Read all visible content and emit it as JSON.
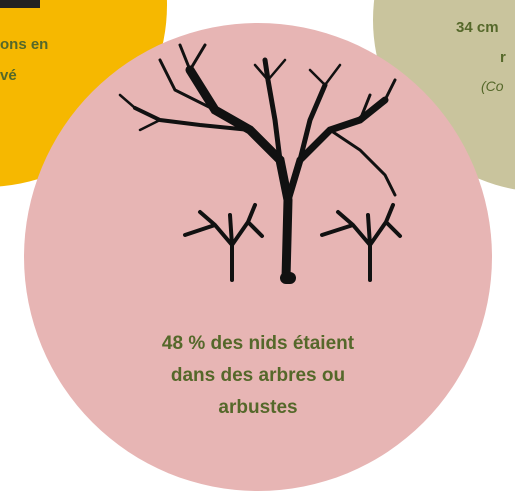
{
  "left_bubble": {
    "lines": [
      "ons en",
      "vé"
    ]
  },
  "right_bubble": {
    "lines": [
      "34 cm",
      "r",
      "(Co"
    ]
  },
  "center_bubble": {
    "lines": [
      "48 % des nids étaient",
      "dans des arbres ou",
      "arbustes"
    ]
  }
}
